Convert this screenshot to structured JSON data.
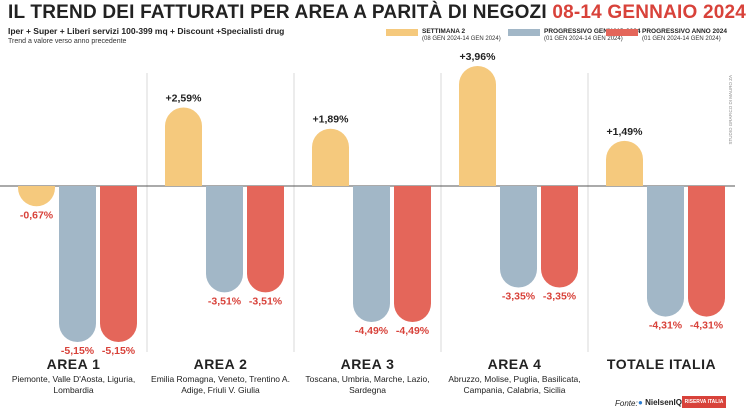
{
  "title_main": "IL TREND DEI FATTURATI PER AREA A PARITÀ DI NEGOZI",
  "title_date": "08-14 GENNAIO 2024",
  "subtitle": "Iper + Super + Liberi servizi 100-399 mq + Discount +Specialisti drug",
  "subnote": "Trend a valore verso anno precedente",
  "legend": [
    {
      "label": "SETTIMANA 2",
      "sub": "(08 GEN 2024-14 GEN 2024)",
      "color": "#f5c97d"
    },
    {
      "label": "PROGRESSIVO GENNAIO 2024",
      "sub": "(01 GEN 2024-14 GEN 2024)",
      "color": "#a2b7c7"
    },
    {
      "label": "PROGRESSIVO ANNO 2024",
      "sub": "(01 GEN 2024-14 GEN 2024)",
      "color": "#e4665a"
    }
  ],
  "vertical_note": "STUDIO GRAFICO DI MAURO ZA",
  "areas": [
    {
      "name": "AREA 1",
      "regions": "Piemonte, Valle D'Aosta, Liguria, Lombardia"
    },
    {
      "name": "AREA 2",
      "regions": "Emilia Romagna, Veneto, Trentino A. Adige, Friuli V. Giulia"
    },
    {
      "name": "AREA 3",
      "regions": "Toscana, Umbria, Marche, Lazio, Sardegna"
    },
    {
      "name": "AREA 4",
      "regions": "Abruzzo, Molise, Puglia, Basilicata, Campania, Calabria, Sicilia"
    },
    {
      "name": "TOTALE ITALIA",
      "regions": ""
    }
  ],
  "footer": {
    "fonte": "Fonte:",
    "source": "NielsenIQ",
    "badge": "RISERVA ITALIA"
  },
  "chart_data": {
    "type": "bar",
    "categories": [
      "AREA 1",
      "AREA 2",
      "AREA 3",
      "AREA 4",
      "TOTALE ITALIA"
    ],
    "series": [
      {
        "name": "SETTIMANA 2",
        "color": "#f5c97d",
        "values": [
          -0.67,
          2.59,
          1.89,
          3.96,
          1.49
        ]
      },
      {
        "name": "PROGRESSIVO GENNAIO 2024",
        "color": "#a2b7c7",
        "values": [
          -5.15,
          -3.51,
          -4.49,
          -3.35,
          -4.31
        ]
      },
      {
        "name": "PROGRESSIVO ANNO 2024",
        "color": "#e4665a",
        "values": [
          -5.15,
          -3.51,
          -4.49,
          -3.35,
          -4.31
        ]
      }
    ],
    "labels": [
      [
        "-0,67%",
        "+2,59%",
        "+1,89%",
        "+3,96%",
        "+1,49%"
      ],
      [
        "-5,15%",
        "-3,51%",
        "-4,49%",
        "-3,35%",
        "-4,31%"
      ],
      [
        "-5,15%",
        "-3,51%",
        "-4,49%",
        "-3,35%",
        "-4,31%"
      ]
    ],
    "ylim": [
      -5.5,
      4.2
    ],
    "grid": false
  }
}
